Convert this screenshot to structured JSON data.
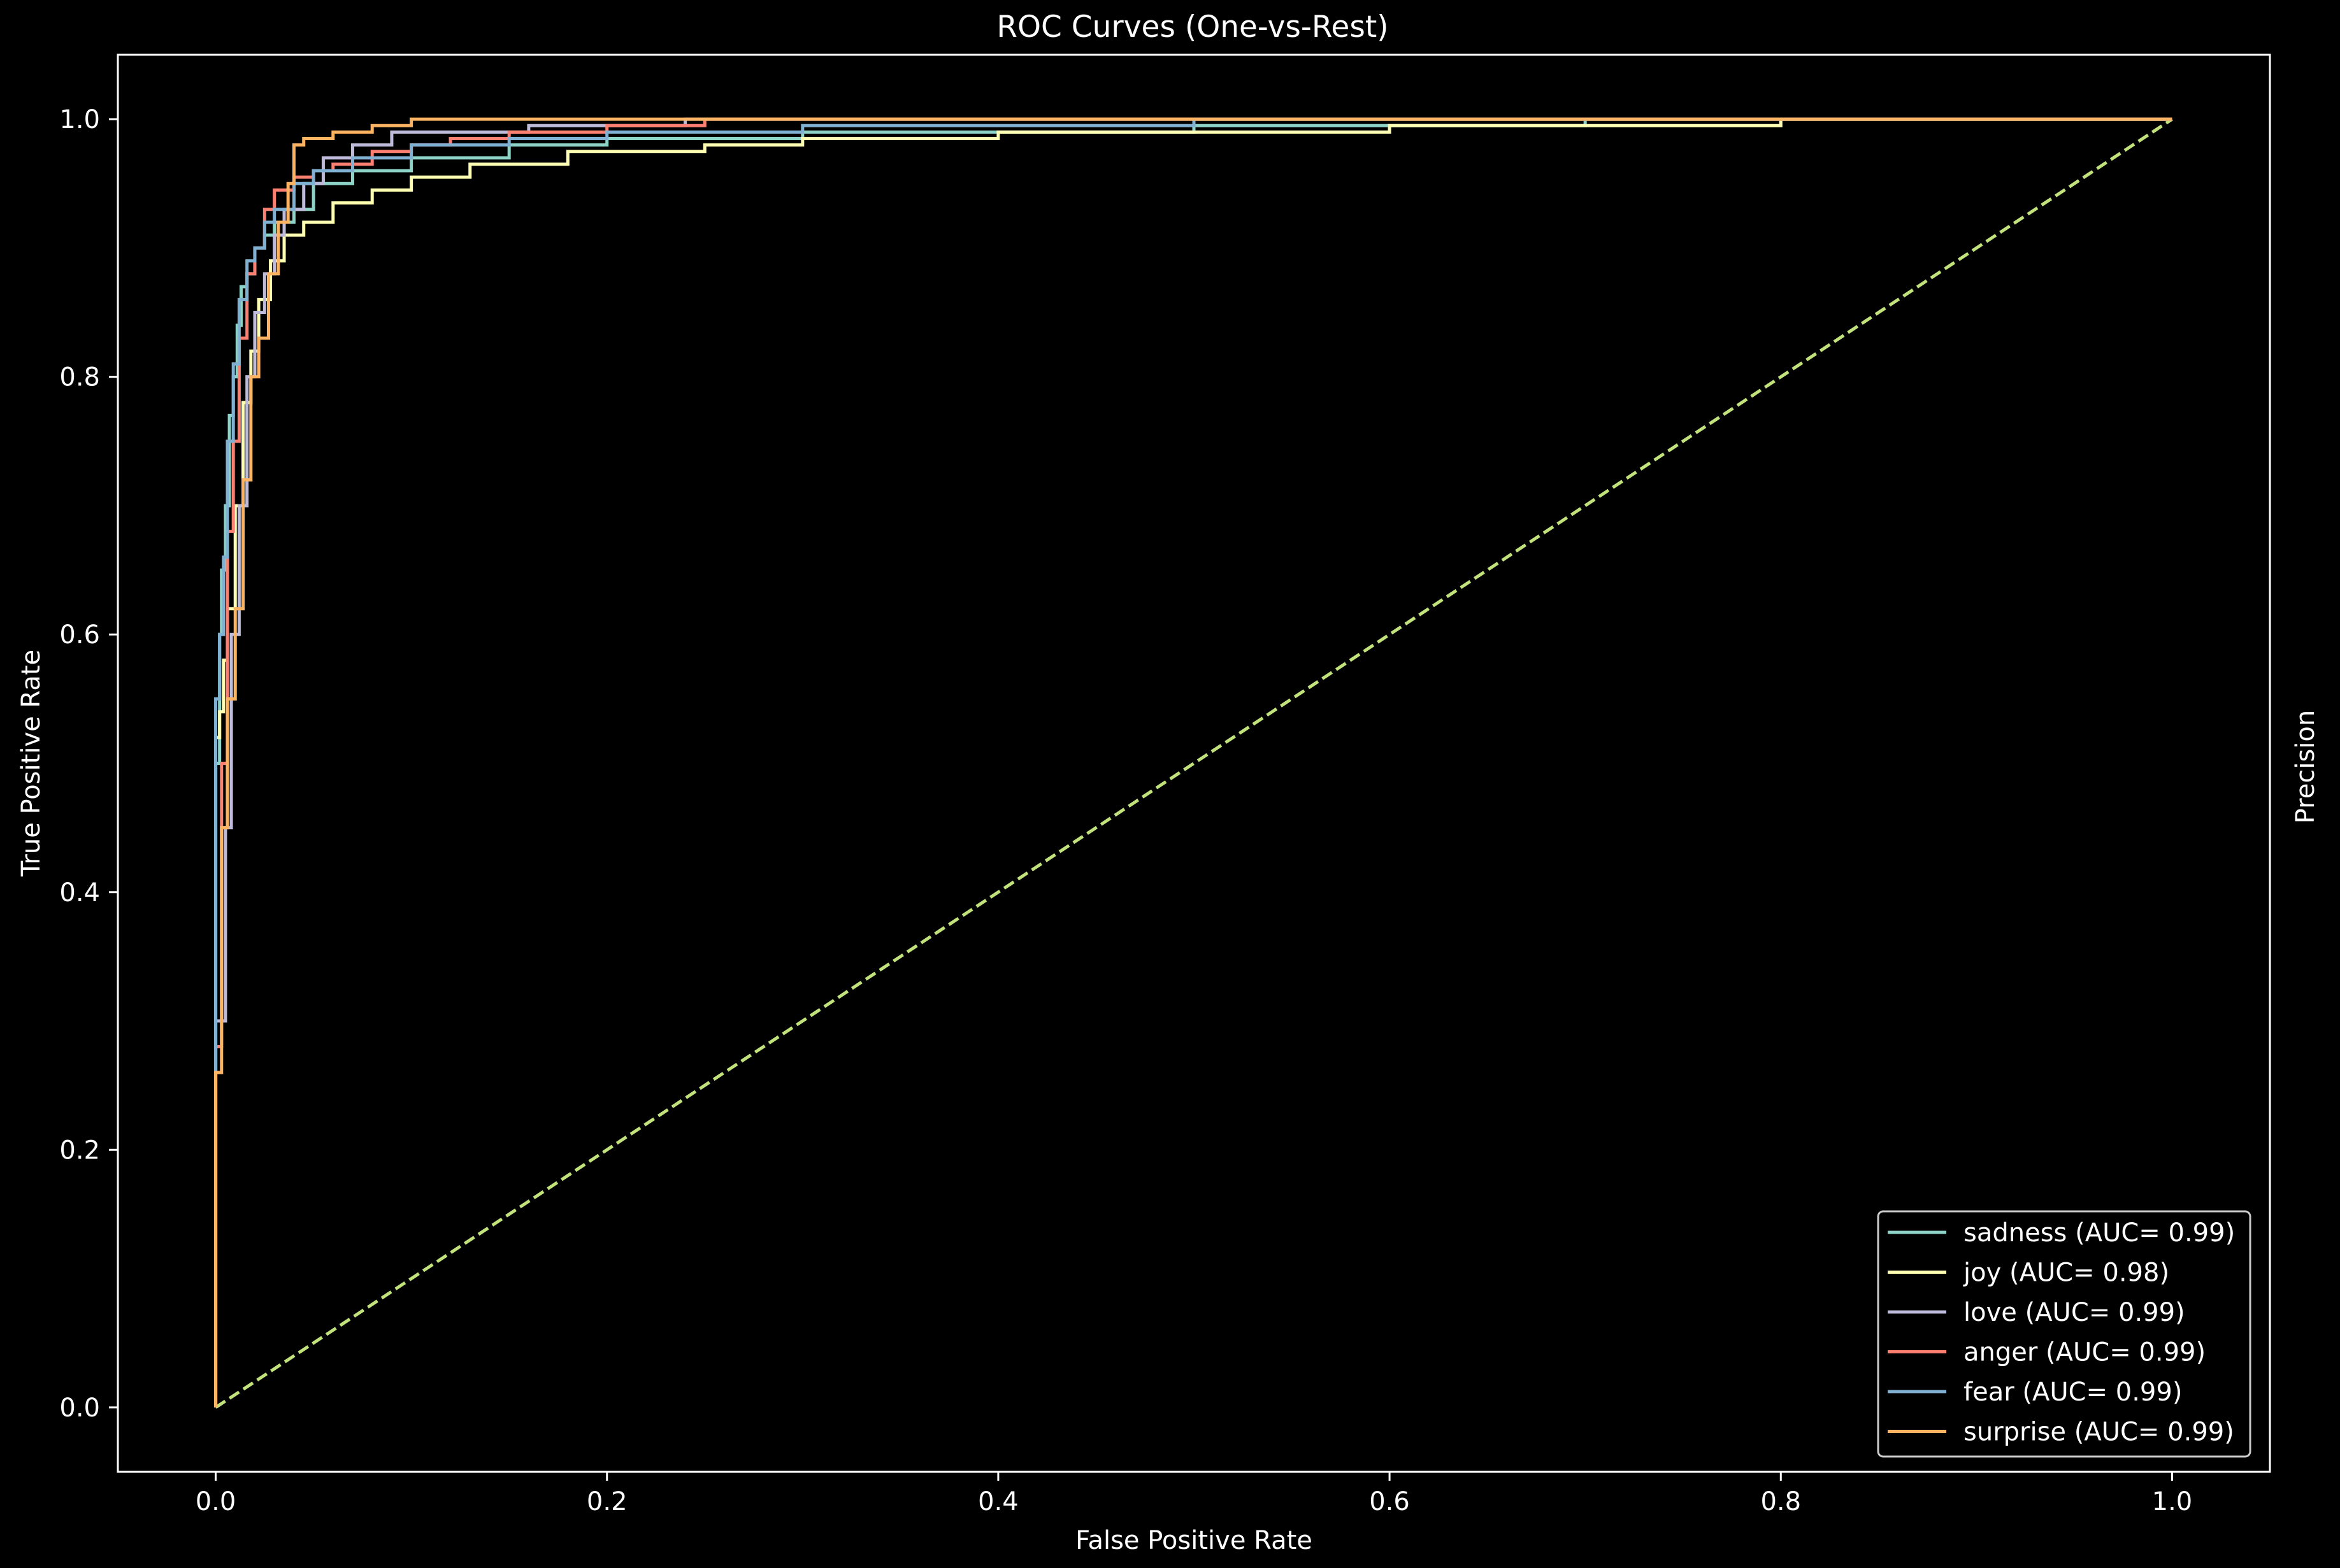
{
  "chart_data": {
    "type": "line",
    "title": "ROC Curves (One-vs-Rest)",
    "xlabel": "False Positive Rate",
    "ylabel": "True Positive Rate",
    "y2label": "Precision",
    "xlim": [
      -0.05,
      1.05
    ],
    "ylim": [
      -0.05,
      1.05
    ],
    "xticks": [
      0.0,
      0.2,
      0.4,
      0.6,
      0.8,
      1.0
    ],
    "yticks": [
      0.0,
      0.2,
      0.4,
      0.6,
      0.8,
      1.0
    ],
    "xtick_labels": [
      "0.0",
      "0.2",
      "0.4",
      "0.6",
      "0.8",
      "1.0"
    ],
    "ytick_labels": [
      "0.0",
      "0.2",
      "0.4",
      "0.6",
      "0.8",
      "1.0"
    ],
    "grid": false,
    "legend_position": "lower-right",
    "background": "#000000",
    "axis_color": "#ffffff",
    "chance_line": {
      "x": [
        0,
        1
      ],
      "y": [
        0,
        1
      ],
      "color": "#c2e27b",
      "style": "dashed"
    },
    "series": [
      {
        "name": "sadness (AUC= 0.99)",
        "color": "#8dd3c7",
        "x": [
          0.0,
          0.0,
          0.002,
          0.003,
          0.005,
          0.007,
          0.009,
          0.011,
          0.013,
          0.016,
          0.02,
          0.025,
          0.03,
          0.04,
          0.05,
          0.07,
          0.1,
          0.15,
          0.2,
          0.3,
          0.5,
          0.7,
          1.0
        ],
        "y": [
          0.0,
          0.5,
          0.6,
          0.65,
          0.7,
          0.77,
          0.8,
          0.84,
          0.87,
          0.88,
          0.9,
          0.91,
          0.92,
          0.93,
          0.95,
          0.96,
          0.97,
          0.98,
          0.985,
          0.99,
          0.995,
          1.0,
          1.0
        ]
      },
      {
        "name": "joy (AUC= 0.98)",
        "color": "#ffffb3",
        "x": [
          0.0,
          0.0,
          0.002,
          0.004,
          0.006,
          0.01,
          0.014,
          0.018,
          0.022,
          0.028,
          0.035,
          0.045,
          0.06,
          0.08,
          0.1,
          0.13,
          0.18,
          0.25,
          0.3,
          0.4,
          0.6,
          0.8,
          1.0
        ],
        "y": [
          0.0,
          0.52,
          0.54,
          0.58,
          0.62,
          0.7,
          0.78,
          0.82,
          0.86,
          0.89,
          0.91,
          0.92,
          0.935,
          0.945,
          0.955,
          0.965,
          0.975,
          0.98,
          0.985,
          0.99,
          0.995,
          1.0,
          1.0
        ]
      },
      {
        "name": "love (AUC= 0.99)",
        "color": "#bebada",
        "x": [
          0.0,
          0.0,
          0.003,
          0.005,
          0.008,
          0.012,
          0.016,
          0.02,
          0.025,
          0.03,
          0.035,
          0.045,
          0.055,
          0.07,
          0.09,
          0.12,
          0.16,
          0.2,
          0.24,
          0.3,
          0.5,
          1.0
        ],
        "y": [
          0.0,
          0.3,
          0.3,
          0.45,
          0.6,
          0.7,
          0.8,
          0.85,
          0.88,
          0.91,
          0.93,
          0.95,
          0.97,
          0.98,
          0.99,
          0.99,
          0.995,
          0.995,
          1.0,
          1.0,
          1.0,
          1.0
        ]
      },
      {
        "name": "anger (AUC= 0.99)",
        "color": "#fb8072",
        "x": [
          0.0,
          0.0,
          0.003,
          0.006,
          0.009,
          0.012,
          0.016,
          0.02,
          0.025,
          0.03,
          0.04,
          0.05,
          0.06,
          0.08,
          0.1,
          0.12,
          0.15,
          0.2,
          0.25,
          0.28,
          1.0
        ],
        "y": [
          0.0,
          0.28,
          0.5,
          0.68,
          0.75,
          0.83,
          0.88,
          0.9,
          0.93,
          0.945,
          0.955,
          0.96,
          0.965,
          0.975,
          0.98,
          0.985,
          0.99,
          0.995,
          1.0,
          1.0,
          1.0
        ]
      },
      {
        "name": "fear (AUC= 0.99)",
        "color": "#80b1d3",
        "x": [
          0.0,
          0.0,
          0.002,
          0.004,
          0.006,
          0.009,
          0.012,
          0.016,
          0.02,
          0.025,
          0.03,
          0.04,
          0.05,
          0.07,
          0.1,
          0.15,
          0.2,
          0.3,
          0.5,
          1.0
        ],
        "y": [
          0.0,
          0.55,
          0.6,
          0.66,
          0.75,
          0.81,
          0.86,
          0.89,
          0.9,
          0.92,
          0.93,
          0.95,
          0.96,
          0.97,
          0.98,
          0.985,
          0.99,
          0.995,
          1.0,
          1.0
        ]
      },
      {
        "name": "surprise (AUC= 0.99)",
        "color": "#fdb462",
        "x": [
          0.0,
          0.0,
          0.003,
          0.006,
          0.01,
          0.014,
          0.018,
          0.022,
          0.027,
          0.032,
          0.037,
          0.04,
          0.045,
          0.06,
          0.08,
          0.1,
          0.12,
          0.2,
          0.5,
          1.0
        ],
        "y": [
          0.0,
          0.26,
          0.45,
          0.55,
          0.62,
          0.72,
          0.8,
          0.83,
          0.88,
          0.92,
          0.95,
          0.98,
          0.985,
          0.99,
          0.995,
          1.0,
          1.0,
          1.0,
          1.0,
          1.0
        ]
      }
    ]
  }
}
